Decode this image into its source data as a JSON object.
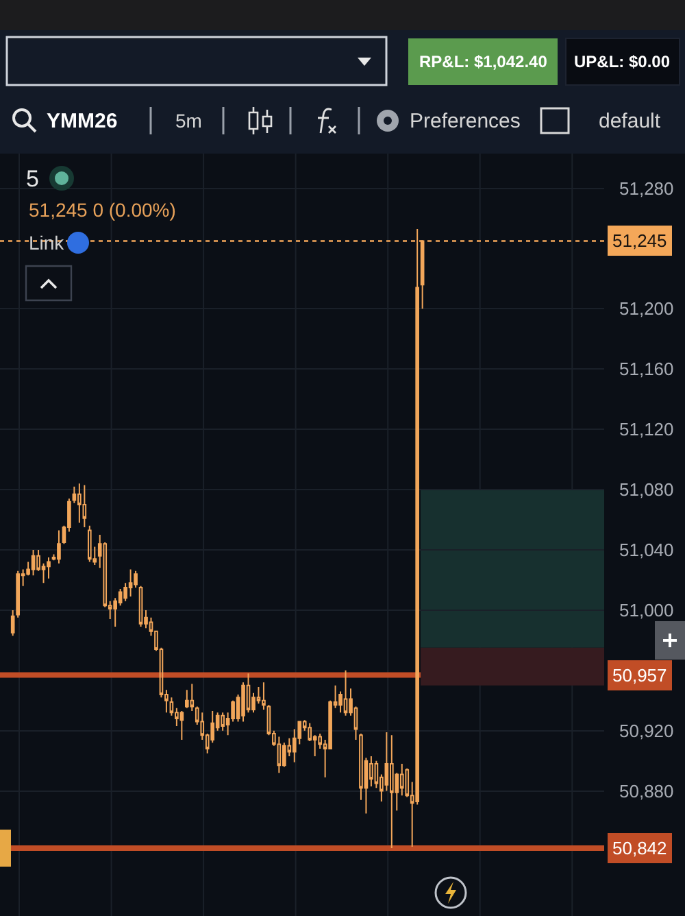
{
  "chart_data": {
    "type": "candlestick",
    "title": "5",
    "subtitle": "51,245 0 (0.00%)",
    "annotations": [
      "RP&L: $1,042.40",
      "UP&L: $0.00",
      "YMM26",
      "5m",
      "Preferences",
      "default",
      "Link"
    ],
    "categories": [
      null,
      null,
      null,
      null,
      null,
      null,
      null,
      null,
      null,
      null,
      null,
      null,
      null,
      null,
      null,
      null,
      null,
      null,
      null,
      null,
      null,
      null,
      null,
      null,
      null,
      null,
      null,
      null,
      null,
      null,
      null,
      null,
      null,
      null,
      null,
      null,
      null,
      null,
      null,
      null,
      null,
      null,
      null,
      null,
      null,
      null,
      null,
      null,
      null,
      null,
      null,
      null,
      null,
      null,
      null,
      null,
      null,
      null,
      null,
      null,
      null,
      null,
      null,
      null,
      null,
      null,
      null,
      null,
      null,
      null,
      null,
      null,
      null,
      null,
      null,
      null,
      null,
      null,
      null,
      null,
      null,
      null,
      null,
      null,
      null,
      null,
      null,
      null,
      null,
      null,
      null,
      null,
      null,
      null,
      null,
      null,
      null,
      null,
      null,
      null,
      null,
      null,
      null,
      null,
      null,
      null,
      null,
      null,
      null,
      null,
      null,
      null,
      null,
      null,
      null,
      null,
      null,
      null
    ],
    "ohlc": [
      null,
      null,
      [
        50985,
        51000,
        50983,
        50996
      ],
      [
        50997,
        51026,
        50995,
        51024
      ],
      [
        51024,
        51027,
        51016,
        51023
      ],
      [
        51024,
        51032,
        51023,
        51027
      ],
      [
        51027,
        51040,
        51023,
        51036
      ],
      [
        51036,
        51040,
        51026,
        51027
      ],
      [
        51027,
        51031,
        51018,
        51029
      ],
      [
        51029,
        51035,
        51021,
        51032
      ],
      [
        51034,
        51037,
        51033,
        51035
      ],
      [
        51034,
        51053,
        51031,
        51044
      ],
      [
        51045,
        51056,
        51044,
        51055
      ],
      [
        51055,
        51074,
        51052,
        51072
      ],
      [
        51073,
        51082,
        51071,
        51077
      ],
      [
        51077,
        51084,
        51058,
        51070
      ],
      [
        51070,
        51083,
        51055,
        51061
      ],
      [
        51053,
        51056,
        51032,
        51034
      ],
      [
        51034,
        51042,
        51030,
        51032
      ],
      [
        51036,
        51050,
        51028,
        51044
      ],
      [
        51044,
        51045,
        51002,
        51003
      ],
      [
        51003,
        51006,
        50994,
        51001
      ],
      [
        51001,
        51008,
        50989,
        51006
      ],
      [
        51005,
        51014,
        51003,
        51012
      ],
      [
        51008,
        51018,
        51006,
        51015
      ],
      [
        51015,
        51027,
        51009,
        51018
      ],
      [
        51017,
        51026,
        51015,
        51024
      ],
      [
        51015,
        51016,
        50989,
        50991
      ],
      [
        50991,
        51000,
        50988,
        50995
      ],
      [
        50992,
        50995,
        50983,
        50986
      ],
      [
        50986,
        50986,
        50973,
        50974
      ],
      [
        50974,
        50975,
        50942,
        50944
      ],
      [
        50944,
        50947,
        50932,
        50940
      ],
      [
        50939,
        50942,
        50930,
        50932
      ],
      [
        50932,
        50935,
        50923,
        50928
      ],
      [
        50927,
        50933,
        50914,
        50932
      ],
      [
        50936,
        50947,
        50935,
        50940
      ],
      [
        50940,
        50951,
        50933,
        50936
      ],
      [
        50935,
        50936,
        50924,
        50926
      ],
      [
        50926,
        50932,
        50914,
        50917
      ],
      [
        50917,
        50918,
        50905,
        50908
      ],
      [
        50914,
        50933,
        50912,
        50925
      ],
      [
        50922,
        50932,
        50920,
        50930
      ],
      [
        50930,
        50932,
        50920,
        50923
      ],
      [
        50924,
        50932,
        50917,
        50928
      ],
      [
        50928,
        50940,
        50926,
        50939
      ],
      [
        50928,
        50944,
        50926,
        50942
      ],
      [
        50930,
        50952,
        50926,
        50950
      ],
      [
        50950,
        50958,
        50932,
        50934
      ],
      [
        50934,
        50945,
        50932,
        50942
      ],
      [
        50942,
        50949,
        50938,
        50940
      ],
      [
        50940,
        50952,
        50934,
        50937
      ],
      [
        50936,
        50937,
        50917,
        50918
      ],
      [
        50918,
        50920,
        50910,
        50911
      ],
      [
        50911,
        50916,
        50892,
        50897
      ],
      [
        50897,
        50912,
        50896,
        50910
      ],
      [
        50910,
        50915,
        50903,
        50906
      ],
      [
        50906,
        50921,
        50899,
        50915
      ],
      [
        50915,
        50926,
        50911,
        50926
      ],
      [
        50926,
        50927,
        50920,
        50922
      ],
      [
        50922,
        50925,
        50913,
        50914
      ],
      [
        50914,
        50917,
        50903,
        50916
      ],
      [
        50916,
        50918,
        50908,
        50911
      ],
      [
        50911,
        50914,
        50889,
        50908
      ],
      [
        50908,
        50940,
        50908,
        50939
      ],
      [
        50939,
        50950,
        50935,
        50937
      ],
      [
        50937,
        50946,
        50932,
        50944
      ],
      [
        50941,
        50960,
        50930,
        50932
      ],
      [
        50932,
        50948,
        50930,
        50941
      ],
      [
        50935,
        50936,
        50914,
        50921
      ],
      [
        50917,
        50918,
        50874,
        50882
      ],
      [
        50882,
        50902,
        50865,
        50900
      ],
      [
        50898,
        50903,
        50883,
        50888
      ],
      [
        50898,
        50900,
        50882,
        50885
      ],
      [
        50889,
        50891,
        50873,
        50880
      ],
      [
        50884,
        50919,
        50880,
        50898
      ],
      [
        50898,
        50917,
        50842,
        50879
      ],
      [
        50879,
        50892,
        50867,
        50891
      ],
      [
        50891,
        50898,
        50877,
        50882
      ],
      [
        50894,
        50895,
        50876,
        50877
      ],
      [
        50877,
        50886,
        50843,
        50872
      ],
      [
        50873,
        51253,
        50871,
        51214
      ],
      [
        51216,
        51245,
        51200,
        51245
      ],
      null,
      null,
      null,
      null,
      null,
      null,
      null,
      null,
      null,
      null,
      null,
      null,
      null,
      null,
      null,
      null,
      null,
      null,
      null,
      null,
      null,
      null,
      null,
      null,
      null,
      null,
      null,
      null,
      null,
      null,
      null,
      null,
      null,
      null,
      null
    ],
    "color": "#f2a65a",
    "ylim": [
      50797,
      51303
    ],
    "yticks": [
      {
        "value": 51280,
        "label": "51,280"
      },
      {
        "value": 51200,
        "label": "51,200"
      },
      {
        "value": 51160,
        "label": "51,160"
      },
      {
        "value": 51120,
        "label": "51,120"
      },
      {
        "value": 51080,
        "label": "51,080"
      },
      {
        "value": 51040,
        "label": "51,040"
      },
      {
        "value": 51000,
        "label": "51,000"
      },
      {
        "value": 50920,
        "label": "50,920"
      },
      {
        "value": 50880,
        "label": "50,880"
      }
    ],
    "grid": true,
    "tick_labels": "y",
    "ref_lines": [
      {
        "axis": "y",
        "value": 51245,
        "label": "51,245",
        "color": "#f4a759",
        "line_style": "dotted"
      },
      {
        "axis": "y",
        "value": 50957,
        "label": "50,957",
        "color": "#c14d26",
        "line_style": "solid"
      },
      {
        "axis": "y",
        "value": 50842,
        "label": "50,842",
        "color": "#c14d26",
        "line_style": "solid"
      }
    ],
    "bands": [
      {
        "axis": "y",
        "from": 50975,
        "to": 51080,
        "color": "#17302f"
      },
      {
        "axis": "y",
        "from": 50950,
        "to": 50975,
        "color": "#361b1f"
      }
    ]
  }
}
